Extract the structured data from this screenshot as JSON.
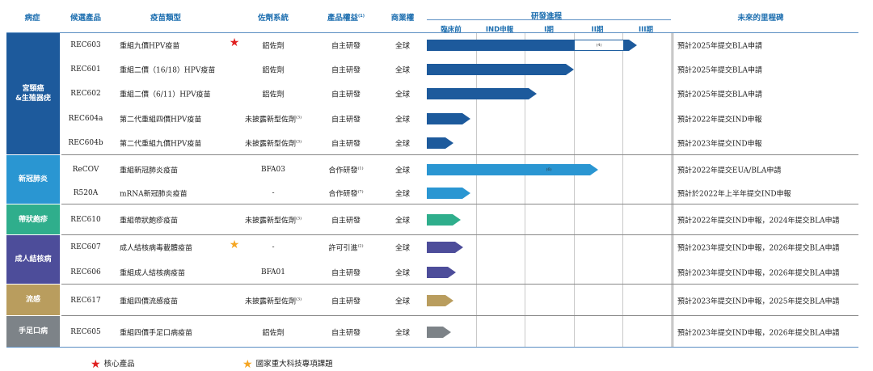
{
  "headers": {
    "disease": "病症",
    "candidate": "候選產品",
    "type": "疫苗類型",
    "adjuvant": "佐劑系統",
    "rights": "產品權益",
    "rights_note": "(1)",
    "commercial": "商業權",
    "progress": "研發進程",
    "milestone": "未來的里程碑"
  },
  "phases": [
    "臨床前",
    "IND申報",
    "I期",
    "II期",
    "III期"
  ],
  "groups": [
    {
      "label": "宮頸癌\n&生殖器疣",
      "color": "#1d5a9c"
    },
    {
      "label": "新冠肺炎",
      "color": "#2a96d2"
    },
    {
      "label": "帶狀皰疹",
      "color": "#2fae8c"
    },
    {
      "label": "成人結核病",
      "color": "#4d4d9a"
    },
    {
      "label": "流感",
      "color": "#b99d5e"
    },
    {
      "label": "手足口病",
      "color": "#7d8388"
    }
  ],
  "rows": [
    {
      "code": "REC603",
      "type": "重組九價HPV疫苗",
      "star": "red",
      "adjuvant": "鋁佐劑",
      "adj_note": "",
      "rights": "自主研發",
      "rights_note": "",
      "commercial": "全球",
      "stage": 4.3,
      "bar_note": "(4)",
      "milestone": "預計2025年提交BLA申請"
    },
    {
      "code": "REC601",
      "type": "重組二價（16/18）HPV疫苗",
      "star": "",
      "adjuvant": "鋁佐劑",
      "adj_note": "",
      "rights": "自主研發",
      "rights_note": "",
      "commercial": "全球",
      "stage": 3.0,
      "bar_note": "",
      "milestone": "預計2025年提交BLA申請"
    },
    {
      "code": "REC602",
      "type": "重組二價（6/11）HPV疫苗",
      "star": "",
      "adjuvant": "鋁佐劑",
      "adj_note": "",
      "rights": "自主研發",
      "rights_note": "",
      "commercial": "全球",
      "stage": 2.25,
      "bar_note": "",
      "milestone": "預計2025年提交BLA申請"
    },
    {
      "code": "REC604a",
      "type": "第二代重組四價HPV疫苗",
      "star": "",
      "adjuvant": "未披露新型佐劑",
      "adj_note": "(3)",
      "rights": "自主研發",
      "rights_note": "",
      "commercial": "全球",
      "stage": 0.9,
      "bar_note": "",
      "milestone": "預計2022年提交IND申報"
    },
    {
      "code": "REC604b",
      "type": "第二代重組九價HPV疫苗",
      "star": "",
      "adjuvant": "未披露新型佐劑",
      "adj_note": "(3)",
      "rights": "自主研發",
      "rights_note": "",
      "commercial": "全球",
      "stage": 0.55,
      "bar_note": "",
      "milestone": "預計2023年提交IND申報"
    },
    {
      "code": "ReCOV",
      "type": "重組新冠肺炎疫苗",
      "star": "",
      "adjuvant": "BFA03",
      "adj_note": "",
      "rights": "合作研發",
      "rights_note": "(1)",
      "commercial": "全球",
      "stage": 3.5,
      "bar_note": "(6)",
      "milestone": "預計2022年提交EUA/BLA申請"
    },
    {
      "code": "R520A",
      "type": "mRNA新冠肺炎疫苗",
      "star": "",
      "adjuvant": "-",
      "adj_note": "",
      "rights": "合作研發",
      "rights_note": "(7)",
      "commercial": "全球",
      "stage": 0.9,
      "bar_note": "",
      "milestone": "預計於2022年上半年提交IND申報"
    },
    {
      "code": "REC610",
      "type": "重組帶狀皰疹疫苗",
      "star": "",
      "adjuvant": "未披露新型佐劑",
      "adj_note": "(3)",
      "rights": "自主研發",
      "rights_note": "",
      "commercial": "全球",
      "stage": 0.7,
      "bar_note": "",
      "milestone": "預計2022年提交IND申報，2024年提交BLA申請"
    },
    {
      "code": "REC607",
      "type": "成人結核病毒載體疫苗",
      "star": "orange",
      "adjuvant": "-",
      "adj_note": "",
      "rights": "許可引進",
      "rights_note": "(2)",
      "commercial": "全球",
      "stage": 0.75,
      "bar_note": "",
      "milestone": "預計2023年提交IND申報，2026年提交BLA申請"
    },
    {
      "code": "REC606",
      "type": "重組成人結核病疫苗",
      "star": "",
      "adjuvant": "BFA01",
      "adj_note": "",
      "rights": "自主研發",
      "rights_note": "",
      "commercial": "全球",
      "stage": 0.6,
      "bar_note": "",
      "milestone": "預計2023年提交IND申報，2026年提交BLA申請"
    },
    {
      "code": "REC617",
      "type": "重組四價流感疫苗",
      "star": "",
      "adjuvant": "未披露新型佐劑",
      "adj_note": "(3)",
      "rights": "自主研發",
      "rights_note": "",
      "commercial": "全球",
      "stage": 0.55,
      "bar_note": "",
      "milestone": "預計2023年提交IND申報，2025年提交BLA申請"
    },
    {
      "code": "REC605",
      "type": "重組四價手足口病疫苗",
      "star": "",
      "adjuvant": "鋁佐劑",
      "adj_note": "",
      "rights": "自主研發",
      "rights_note": "",
      "commercial": "全球",
      "stage": 0.5,
      "bar_note": "",
      "milestone": "預計2023年提交IND申報，2026年提交BLA申請"
    }
  ],
  "legend": {
    "core": "核心產品",
    "major": "國家重大科技專項課題"
  },
  "colors": {
    "red_star": "#e02020",
    "orange_star": "#f5a623",
    "header": "#1e6fb0"
  }
}
